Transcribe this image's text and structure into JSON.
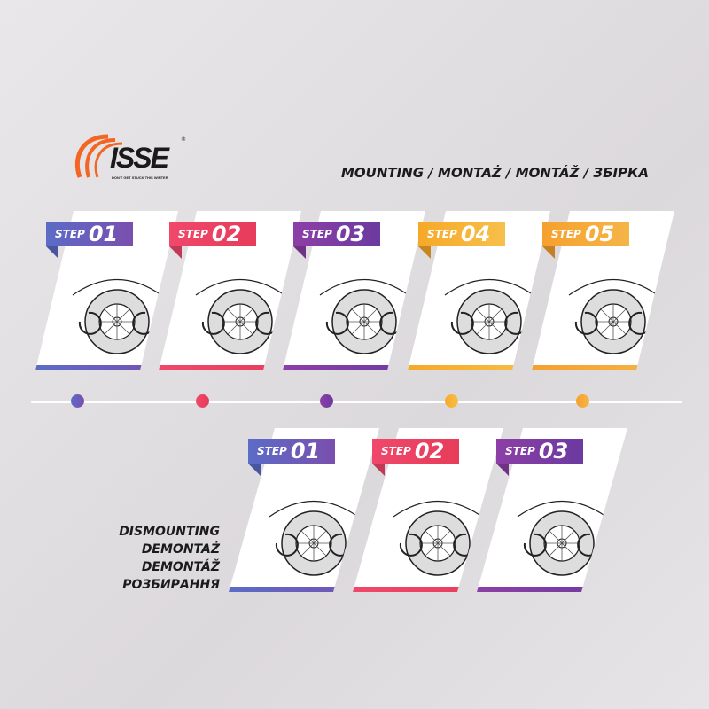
{
  "logo": {
    "name": "ISSE",
    "tagline": "DON'T GET STUCK THIS WINTER",
    "reg": "®"
  },
  "mounting_title": "MOUNTING / MONTAŻ / MONTÁŽ / ЗБІРКА",
  "dismounting_title": [
    "DISMOUNTING",
    "DEMONTAŻ",
    "DEMONTÁŽ",
    "РОЗБИРАННЯ"
  ],
  "mounting_steps": [
    {
      "label": "STEP",
      "num": "01",
      "color": "#5b6cc7",
      "color2": "#7a4fae"
    },
    {
      "label": "STEP",
      "num": "02",
      "color": "#f0486b",
      "color2": "#e73c5a"
    },
    {
      "label": "STEP",
      "num": "03",
      "color": "#8c3fa6",
      "color2": "#6b3aa0"
    },
    {
      "label": "STEP",
      "num": "04",
      "color": "#f7a928",
      "color2": "#f6c04a"
    },
    {
      "label": "STEP",
      "num": "05",
      "color": "#f6a02e",
      "color2": "#f5b547"
    }
  ],
  "dismounting_steps": [
    {
      "label": "STEP",
      "num": "01",
      "color": "#5b6cc7",
      "color2": "#7a4fae"
    },
    {
      "label": "STEP",
      "num": "02",
      "color": "#f0486b",
      "color2": "#e73c5a"
    },
    {
      "label": "STEP",
      "num": "03",
      "color": "#8c3fa6",
      "color2": "#6b3aa0"
    }
  ]
}
